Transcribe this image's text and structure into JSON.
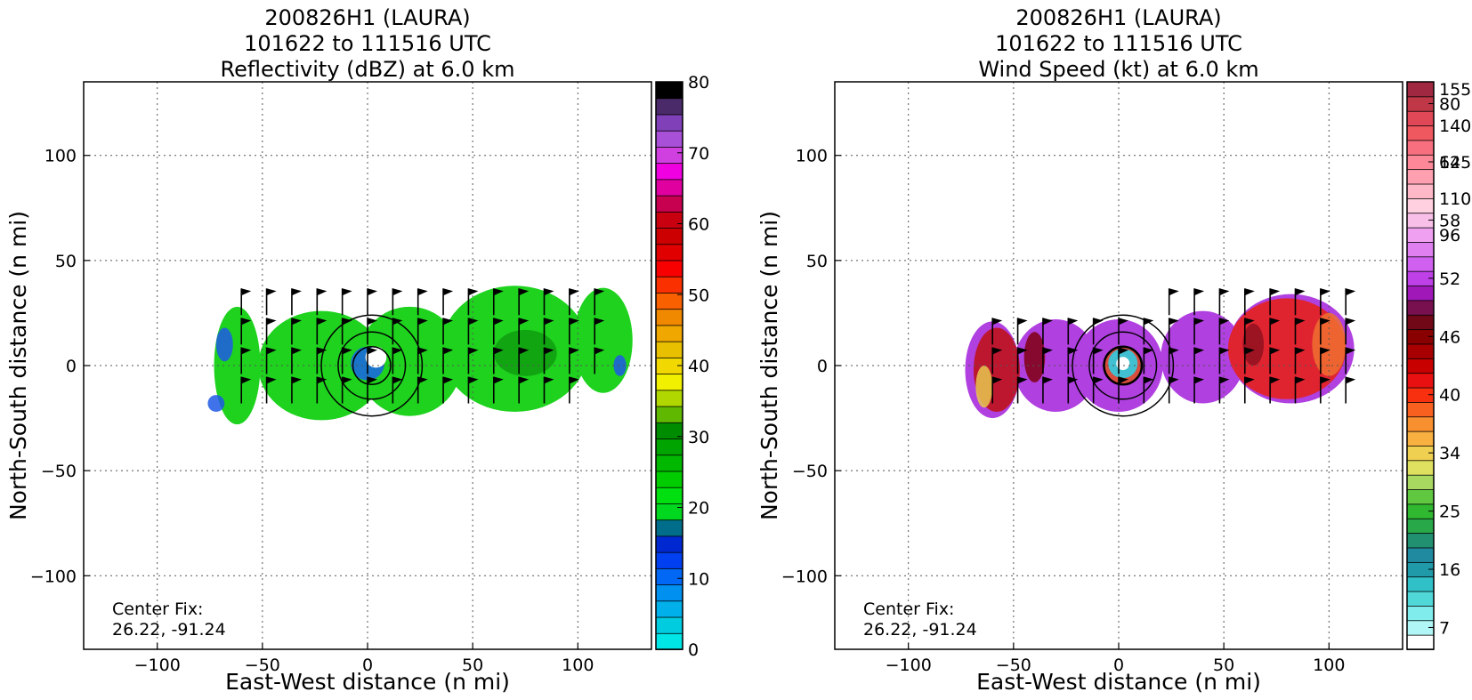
{
  "chart_data": [
    {
      "type": "heatmap",
      "title_lines": [
        "200826H1 (LAURA)",
        "101622 to 111516 UTC",
        "Reflectivity (dBZ) at 6.0 km"
      ],
      "xlabel": "East-West distance (n mi)",
      "ylabel": "North-South distance (n mi)",
      "xlim": [
        -135,
        135
      ],
      "ylim": [
        -135,
        135
      ],
      "xticks": [
        -100,
        -50,
        0,
        50,
        100
      ],
      "yticks": [
        -100,
        -50,
        0,
        50,
        100
      ],
      "grid": true,
      "annotation_lines": [
        "Center Fix:",
        "26.22, -91.24"
      ],
      "colorbar": {
        "vmin": 0,
        "vmax": 80,
        "tick_values": [
          0,
          10,
          20,
          30,
          40,
          50,
          60,
          70,
          80
        ],
        "tick_labels": [
          "0",
          "10",
          "20",
          "30",
          "40",
          "50",
          "60",
          "70",
          "80"
        ],
        "colors": [
          "#00e5e5",
          "#00cce0",
          "#00b0ea",
          "#0090f0",
          "#0068f5",
          "#0040f0",
          "#0028d0",
          "#006e8a",
          "#00d820",
          "#00e010",
          "#00cc00",
          "#00b800",
          "#00a400",
          "#008c00",
          "#60b800",
          "#b0d800",
          "#f0f000",
          "#f0d800",
          "#e8c000",
          "#f0a800",
          "#f08800",
          "#f86000",
          "#fa3000",
          "#f80000",
          "#e00000",
          "#cc0000",
          "#c80010",
          "#c80050",
          "#e000a0",
          "#f000e0",
          "#d040e0",
          "#a850d8",
          "#8040b8",
          "#4a2a68",
          "#000000"
        ]
      },
      "field": {
        "base_color": "#1ed21e",
        "lobes": [
          {
            "x": -62,
            "y": 0,
            "w": 22,
            "h": 56
          },
          {
            "x": -22,
            "y": 0,
            "w": 60,
            "h": 52
          },
          {
            "x": 20,
            "y": 2,
            "w": 50,
            "h": 52
          },
          {
            "x": 70,
            "y": 8,
            "w": 70,
            "h": 60
          },
          {
            "x": 112,
            "y": 12,
            "w": 28,
            "h": 50
          }
        ],
        "patches": [
          {
            "x": -68,
            "y": 10,
            "w": 8,
            "h": 16,
            "color": "#1e5ae6"
          },
          {
            "x": -72,
            "y": -18,
            "w": 8,
            "h": 8,
            "color": "#1e5ae6"
          },
          {
            "x": 0,
            "y": 1,
            "w": 16,
            "h": 16,
            "color": "#1a64e8"
          },
          {
            "x": 75,
            "y": 6,
            "w": 30,
            "h": 22,
            "color": "#119e11"
          },
          {
            "x": 120,
            "y": 0,
            "w": 6,
            "h": 10,
            "color": "#1e5ae6"
          }
        ],
        "eye": {
          "x": 4,
          "y": 4,
          "r": 5
        }
      }
    },
    {
      "type": "heatmap",
      "title_lines": [
        "200826H1 (LAURA)",
        "101622 to 111516 UTC",
        "Wind Speed (kt) at 6.0 km"
      ],
      "xlabel": "East-West distance (n mi)",
      "ylabel": "North-South distance (n mi)",
      "xlim": [
        -135,
        135
      ],
      "ylim": [
        -135,
        135
      ],
      "xticks": [
        -100,
        -50,
        0,
        50,
        100
      ],
      "yticks": [
        -100,
        -50,
        0,
        50,
        100
      ],
      "grid": true,
      "annotation_lines": [
        "Center Fix:",
        "26.22, -91.24"
      ],
      "colorbar": {
        "vmin": 0,
        "vmax": 38,
        "tick_values": [
          1,
          5,
          9,
          13,
          17,
          21,
          25,
          29,
          33,
          37
        ],
        "tick_labels": [
          "7",
          "16",
          "25",
          "34",
          "40",
          "46",
          "52",
          "58",
          "64",
          "80"
        ],
        "top_tick_values": [
          31,
          33,
          35,
          37
        ],
        "colors": [
          "#ffffff",
          "#b0f6f6",
          "#80ecec",
          "#50d8d8",
          "#30c0c8",
          "#209aa8",
          "#208aa0",
          "#209070",
          "#28a848",
          "#30b830",
          "#60c840",
          "#a8d860",
          "#e0e060",
          "#f0d050",
          "#f8b040",
          "#f89030",
          "#f86020",
          "#f83010",
          "#e81010",
          "#c80000",
          "#a80000",
          "#880000",
          "#700818",
          "#781050",
          "#a018b8",
          "#c040e8",
          "#d060f0",
          "#e080f0",
          "#f0a0f0",
          "#f8c0e8",
          "#ffd0e0",
          "#ffb8c8",
          "#ffa0b0",
          "#ff8898",
          "#f87080",
          "#f05860",
          "#e04858",
          "#c03848",
          "#a02840"
        ],
        "extra_labels": [
          "96",
          "110",
          "125",
          "140",
          "155"
        ]
      },
      "field": {
        "base_color": "#b040e0",
        "lobes": [
          {
            "x": -60,
            "y": -2,
            "w": 26,
            "h": 46
          },
          {
            "x": -30,
            "y": 0,
            "w": 40,
            "h": 44
          },
          {
            "x": 0,
            "y": 0,
            "w": 42,
            "h": 44
          },
          {
            "x": 40,
            "y": 4,
            "w": 40,
            "h": 44
          },
          {
            "x": 82,
            "y": 8,
            "w": 60,
            "h": 52
          }
        ],
        "patches": [
          {
            "x": -58,
            "y": -2,
            "w": 22,
            "h": 40,
            "color": "#c01010"
          },
          {
            "x": -64,
            "y": -10,
            "w": 8,
            "h": 20,
            "color": "#e8c850"
          },
          {
            "x": -40,
            "y": 4,
            "w": 10,
            "h": 24,
            "color": "#800010"
          },
          {
            "x": 80,
            "y": 8,
            "w": 56,
            "h": 48,
            "color": "#e82010"
          },
          {
            "x": 100,
            "y": 10,
            "w": 16,
            "h": 30,
            "color": "#f07030"
          },
          {
            "x": 64,
            "y": 10,
            "w": 10,
            "h": 20,
            "color": "#901020"
          },
          {
            "x": 2,
            "y": 0,
            "w": 18,
            "h": 18,
            "color": "#e05020"
          }
        ],
        "eye": {
          "x": 2,
          "y": 1,
          "r": 7
        }
      }
    }
  ]
}
